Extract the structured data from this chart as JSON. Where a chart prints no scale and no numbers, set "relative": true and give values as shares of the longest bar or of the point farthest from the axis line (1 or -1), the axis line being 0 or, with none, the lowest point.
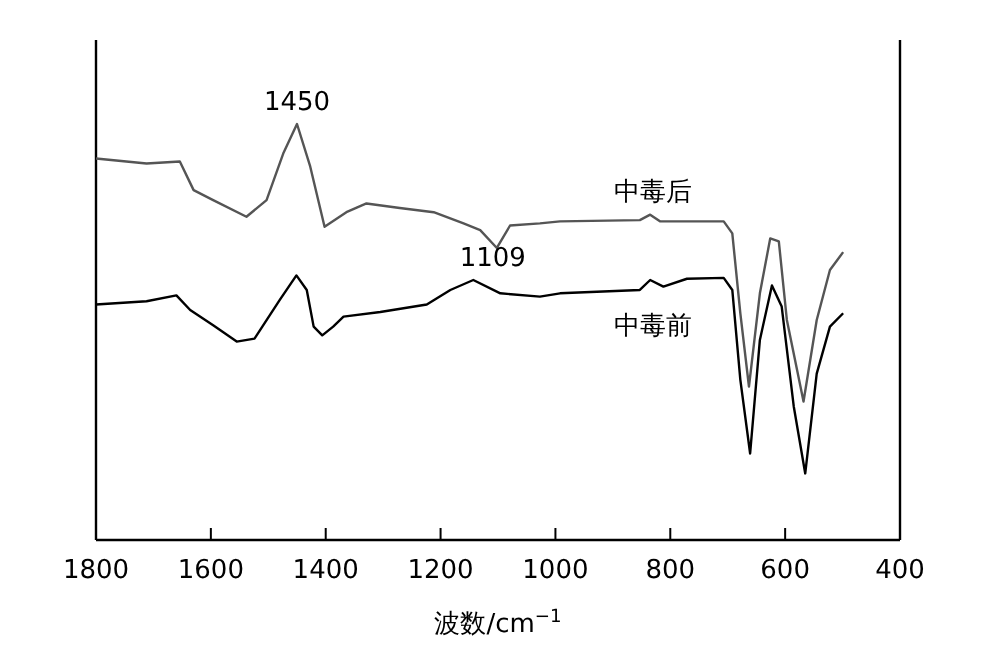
{
  "chart_data": {
    "type": "line",
    "relative": true,
    "xlabel": "波数/cm$^{−1}$",
    "xlim": [
      1800,
      400
    ],
    "xticks": [
      1800,
      1600,
      1400,
      1200,
      1000,
      800,
      600,
      400
    ],
    "tick_labels": "x",
    "grid": false,
    "series": [
      {
        "name": "中毒后",
        "color": "#555555",
        "x": [
          1800,
          1712,
          1654,
          1630,
          1596,
          1538,
          1503,
          1474,
          1450,
          1427,
          1402,
          1364,
          1329,
          1271,
          1212,
          1160,
          1131,
          1102,
          1079,
          1027,
          992,
          853,
          835,
          818,
          707,
          692,
          678,
          663,
          644,
          626,
          611,
          597,
          568,
          545,
          522,
          499
        ],
        "values": [
          0.917,
          0.905,
          0.91,
          0.841,
          0.817,
          0.777,
          0.817,
          0.929,
          1.0,
          0.898,
          0.753,
          0.788,
          0.809,
          0.798,
          0.788,
          0.761,
          0.745,
          0.702,
          0.756,
          0.761,
          0.766,
          0.769,
          0.782,
          0.766,
          0.766,
          0.737,
          0.545,
          0.369,
          0.593,
          0.725,
          0.718,
          0.529,
          0.333,
          0.529,
          0.649,
          0.692
        ]
      },
      {
        "name": "中毒前",
        "color": "#000000",
        "x": [
          1800,
          1712,
          1660,
          1636,
          1596,
          1555,
          1524,
          1480,
          1451,
          1433,
          1421,
          1406,
          1387,
          1369,
          1305,
          1224,
          1183,
          1143,
          1096,
          1027,
          992,
          853,
          835,
          812,
          771,
          707,
          692,
          678,
          661,
          644,
          623,
          606,
          585,
          565,
          545,
          522,
          499
        ],
        "values": [
          0.566,
          0.574,
          0.588,
          0.553,
          0.516,
          0.477,
          0.484,
          0.577,
          0.636,
          0.601,
          0.513,
          0.492,
          0.513,
          0.537,
          0.548,
          0.566,
          0.601,
          0.625,
          0.593,
          0.585,
          0.593,
          0.601,
          0.625,
          0.609,
          0.628,
          0.63,
          0.601,
          0.385,
          0.208,
          0.481,
          0.612,
          0.561,
          0.321,
          0.16,
          0.4,
          0.513,
          0.545
        ]
      }
    ],
    "annotations": [
      {
        "text": "1450",
        "x": 1450,
        "y": 1.0
      },
      {
        "text": "1109",
        "x": 1109,
        "y": 0.625
      }
    ]
  }
}
